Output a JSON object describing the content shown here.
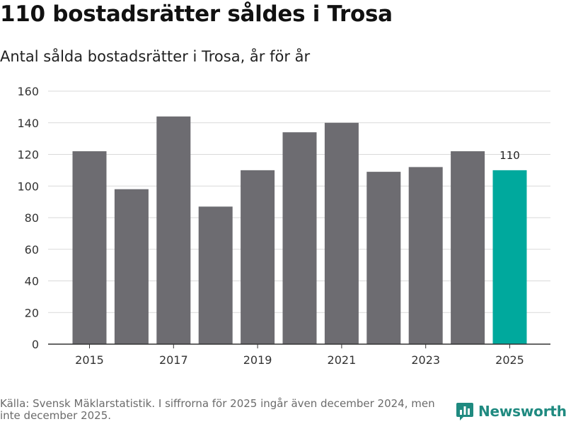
{
  "title": "110 bostadsrätter såldes i Trosa",
  "subtitle": "Antal sålda bostadsrätter i Trosa, år för år",
  "source": "Källa: Svensk Mäklarstatistik. I siffrorna för 2025 ingår även december 2024, men inte december 2025.",
  "brand": {
    "name": "Newsworthy",
    "logo_icon": "newsworthy-chart-icon"
  },
  "colors": {
    "bar": "#6d6c71",
    "highlight": "#00a99d",
    "grid": "#d9d9d9",
    "axis": "#333333",
    "brand": "#1f8a80"
  },
  "chart_data": {
    "type": "bar",
    "title": "110 bostadsrätter såldes i Trosa",
    "subtitle": "Antal sålda bostadsrätter i Trosa, år för år",
    "xlabel": "",
    "ylabel": "",
    "categories": [
      "2015",
      "2016",
      "2017",
      "2018",
      "2019",
      "2020",
      "2021",
      "2022",
      "2023",
      "2024",
      "2025"
    ],
    "values": [
      122,
      98,
      144,
      87,
      110,
      134,
      140,
      109,
      112,
      122,
      110
    ],
    "x_tick_labels": [
      "2015",
      "2017",
      "2019",
      "2021",
      "2023",
      "2025"
    ],
    "y_ticks": [
      0,
      20,
      40,
      60,
      80,
      100,
      120,
      140,
      160
    ],
    "ylim": [
      0,
      160
    ],
    "grid": true,
    "highlight": {
      "category": "2025",
      "label": "110"
    }
  }
}
